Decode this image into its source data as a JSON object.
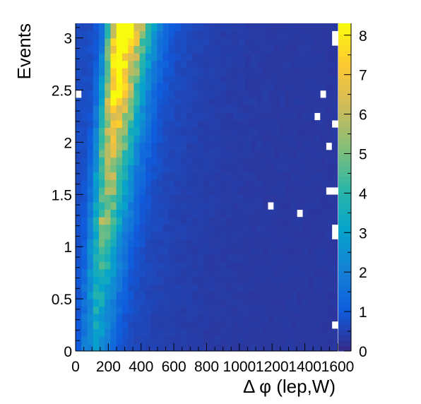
{
  "chart_data": {
    "type": "heatmap",
    "title": "",
    "xlabel": "Δ φ (lep,W)",
    "ylabel": "Events",
    "xlim": [
      0,
      1600
    ],
    "ylim": [
      0,
      3.14
    ],
    "zlim": [
      0,
      8.3
    ],
    "x_bins": 45,
    "y_bins": 44,
    "x_ticks": [
      0,
      200,
      400,
      600,
      800,
      1000,
      1200,
      1400,
      1600
    ],
    "x_tick_labels": [
      "0",
      "200",
      "400",
      "600",
      "800",
      "1000",
      "1200",
      "1400",
      "1600"
    ],
    "y_ticks": [
      0,
      0.5,
      1,
      1.5,
      2,
      2.5,
      3
    ],
    "y_tick_labels": [
      "0",
      "0.5",
      "1",
      "1.5",
      "2",
      "2.5",
      "3"
    ],
    "z_ticks": [
      0,
      1,
      2,
      3,
      4,
      5,
      6,
      7,
      8
    ],
    "z_tick_labels": [
      "0",
      "1",
      "2",
      "3",
      "4",
      "5",
      "6",
      "7",
      "8"
    ],
    "colormap": [
      "#352a87",
      "#0f5cdd",
      "#1481d6",
      "#06a4ca",
      "#2eb7a4",
      "#87bf77",
      "#d1bb59",
      "#fec832",
      "#f9fb0e"
    ],
    "density_model": {
      "description": "approximate bin content z(x,y); ridge peak position rises with y",
      "peak_x_at_y0": 90,
      "peak_x_at_ymax": 265,
      "peak_height_at_y0": 2.0,
      "peak_height_at_ymax": 8.0,
      "baseline": 0.3
    },
    "empty_bins": [
      [
        1590,
        2.97
      ],
      [
        1590,
        3.03
      ],
      [
        20,
        2.47
      ],
      [
        1500,
        2.47
      ],
      [
        1510,
        2.47
      ],
      [
        1490,
        2.27
      ],
      [
        1460,
        2.27
      ],
      [
        1570,
        2.15
      ],
      [
        1560,
        1.95
      ],
      [
        1530,
        1.53
      ],
      [
        1590,
        1.53
      ],
      [
        1200,
        1.4
      ],
      [
        1370,
        1.3
      ],
      [
        1590,
        1.2
      ],
      [
        1570,
        1.1
      ],
      [
        1590,
        0.27
      ]
    ]
  }
}
